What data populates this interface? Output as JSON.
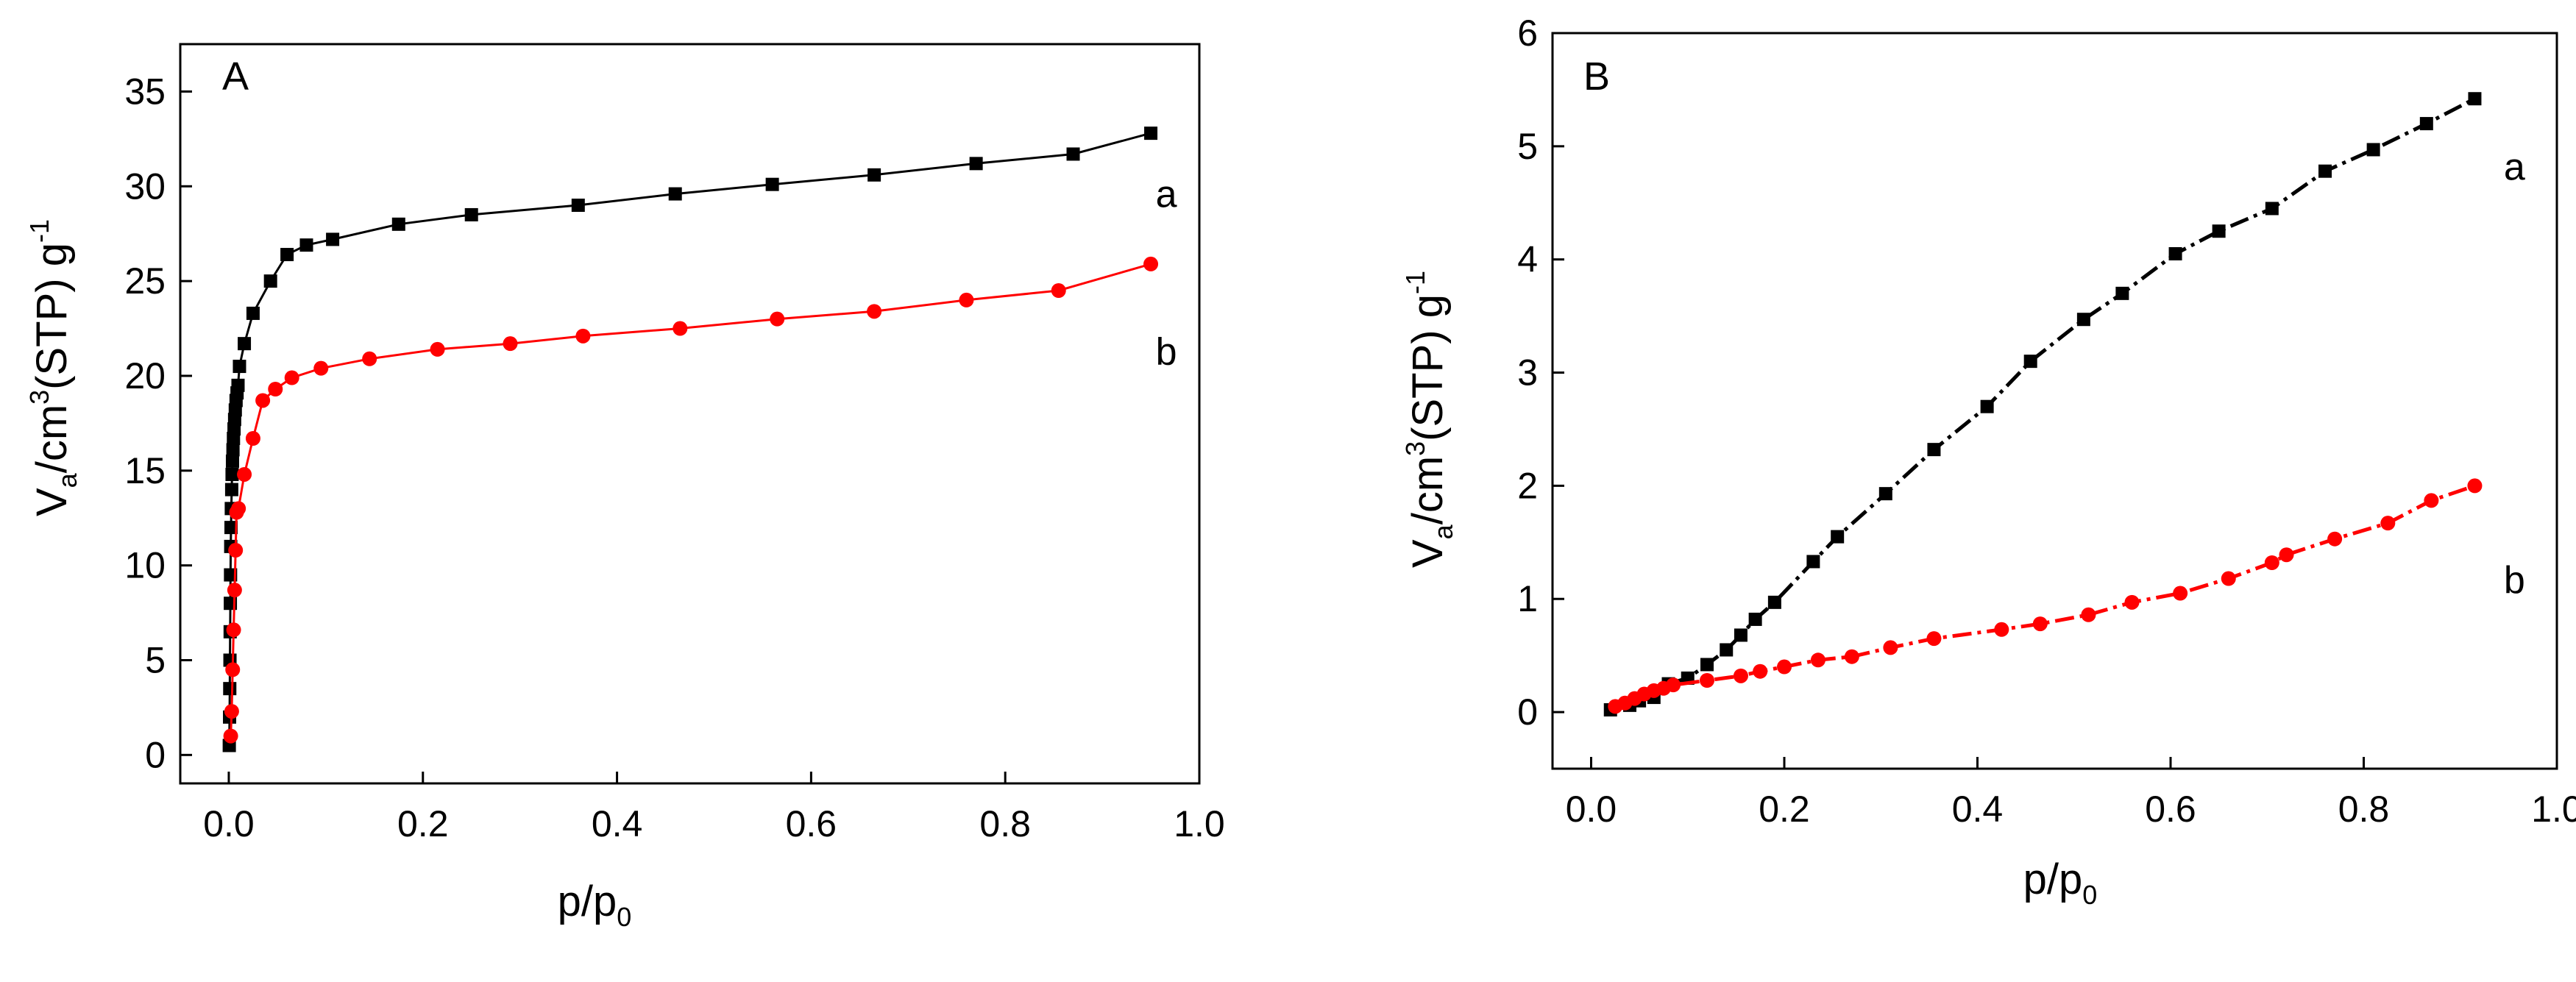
{
  "figure": {
    "colors": {
      "series_a": "#000000",
      "series_b": "#ff0000",
      "axis": "#000000",
      "background": "#ffffff"
    }
  },
  "chart_data": [
    {
      "type": "line",
      "panel_label": "A",
      "ylabel": {
        "main": "V",
        "sub": "a",
        "rest": "/cm",
        "sup3": "3",
        "unit": "(STP) g",
        "sup_neg": "-1"
      },
      "xlabel": {
        "main": "p/p",
        "sub": "0"
      },
      "xlim": [
        -0.05,
        1.0
      ],
      "ylim": [
        -1.5,
        37.5
      ],
      "xticks": [
        0.0,
        0.2,
        0.4,
        0.6,
        0.8,
        1.0
      ],
      "xtick_labels": [
        "0.0",
        "0.2",
        "0.4",
        "0.6",
        "0.8",
        "1.0"
      ],
      "yticks": [
        0,
        5,
        10,
        15,
        20,
        25,
        30,
        35
      ],
      "ytick_labels": [
        "0",
        "5",
        "10",
        "15",
        "20",
        "25",
        "30",
        "35"
      ],
      "series": [
        {
          "name": "a",
          "label": "a",
          "label_at": [
            0.955,
            29.6
          ],
          "color": "#000000",
          "marker": "square",
          "x": [
            0.0005,
            0.0008,
            0.001,
            0.0012,
            0.0014,
            0.0016,
            0.0018,
            0.002,
            0.0023,
            0.0026,
            0.003,
            0.0034,
            0.0038,
            0.0043,
            0.0048,
            0.0054,
            0.006,
            0.0067,
            0.0075,
            0.0085,
            0.0095,
            0.011,
            0.016,
            0.025,
            0.043,
            0.06,
            0.08,
            0.107,
            0.175,
            0.25,
            0.36,
            0.46,
            0.56,
            0.665,
            0.77,
            0.87,
            0.95
          ],
          "y": [
            0.5,
            2.0,
            3.5,
            5.0,
            6.5,
            8.0,
            9.5,
            11.0,
            12.0,
            13.0,
            14.0,
            14.8,
            15.5,
            16.1,
            16.7,
            17.2,
            17.7,
            18.2,
            18.7,
            19.1,
            19.5,
            20.5,
            21.7,
            23.3,
            25.0,
            26.4,
            26.9,
            27.2,
            28.0,
            28.5,
            29.0,
            29.6,
            30.1,
            30.6,
            31.2,
            31.7,
            32.8
          ]
        },
        {
          "name": "b",
          "label": "b",
          "label_at": [
            0.955,
            21.3
          ],
          "color": "#ff0000",
          "marker": "circle",
          "x": [
            0.002,
            0.003,
            0.004,
            0.005,
            0.006,
            0.007,
            0.008,
            0.01,
            0.016,
            0.025,
            0.035,
            0.048,
            0.065,
            0.095,
            0.145,
            0.215,
            0.29,
            0.365,
            0.465,
            0.565,
            0.665,
            0.76,
            0.855,
            0.95
          ],
          "y": [
            1.0,
            2.3,
            4.5,
            6.6,
            8.7,
            10.8,
            12.8,
            13.0,
            14.8,
            16.7,
            18.7,
            19.3,
            19.9,
            20.4,
            20.9,
            21.4,
            21.7,
            22.1,
            22.5,
            23.0,
            23.4,
            24.0,
            24.5,
            25.9
          ]
        }
      ]
    },
    {
      "type": "line",
      "panel_label": "B",
      "ylabel": {
        "main": "V",
        "sub": "a",
        "rest": "/cm",
        "sup3": "3",
        "unit": "(STP) g",
        "sup_neg": "-1"
      },
      "xlabel": {
        "main": "p/p",
        "sub": "0"
      },
      "xlim": [
        -0.04,
        1.0
      ],
      "ylim": [
        -0.5,
        6.0
      ],
      "xticks": [
        0.0,
        0.2,
        0.4,
        0.6,
        0.8,
        1.0
      ],
      "xtick_labels": [
        "0.0",
        "0.2",
        "0.4",
        "0.6",
        "0.8",
        "1.0"
      ],
      "yticks": [
        0,
        1,
        2,
        3,
        4,
        5,
        6
      ],
      "ytick_labels": [
        "0",
        "1",
        "2",
        "3",
        "4",
        "5",
        "6"
      ],
      "series": [
        {
          "name": "a",
          "label": "a",
          "label_at": [
            0.945,
            4.82
          ],
          "color": "#000000",
          "marker": "square",
          "linestyle": "dashdot",
          "x": [
            0.02,
            0.04,
            0.05,
            0.065,
            0.08,
            0.1,
            0.12,
            0.14,
            0.155,
            0.17,
            0.19,
            0.23,
            0.255,
            0.305,
            0.355,
            0.41,
            0.455,
            0.51,
            0.55,
            0.605,
            0.65,
            0.705,
            0.76,
            0.81,
            0.865,
            0.915
          ],
          "y": [
            0.02,
            0.06,
            0.1,
            0.13,
            0.25,
            0.3,
            0.42,
            0.55,
            0.68,
            0.82,
            0.97,
            1.33,
            1.55,
            1.93,
            2.32,
            2.7,
            3.1,
            3.47,
            3.7,
            4.05,
            4.25,
            4.45,
            4.78,
            4.97,
            5.2,
            5.42
          ]
        },
        {
          "name": "b",
          "label": "b",
          "label_at": [
            0.945,
            1.17
          ],
          "color": "#ff0000",
          "marker": "circle",
          "linestyle": "dashdot",
          "x": [
            0.025,
            0.035,
            0.045,
            0.055,
            0.065,
            0.075,
            0.085,
            0.12,
            0.155,
            0.175,
            0.2,
            0.235,
            0.27,
            0.31,
            0.355,
            0.425,
            0.465,
            0.515,
            0.56,
            0.61,
            0.66,
            0.705,
            0.72,
            0.77,
            0.825,
            0.87,
            0.915
          ],
          "y": [
            0.05,
            0.08,
            0.12,
            0.16,
            0.19,
            0.21,
            0.24,
            0.28,
            0.32,
            0.36,
            0.4,
            0.46,
            0.49,
            0.57,
            0.65,
            0.73,
            0.78,
            0.86,
            0.97,
            1.05,
            1.18,
            1.32,
            1.39,
            1.53,
            1.67,
            1.87,
            2.0
          ]
        }
      ]
    }
  ]
}
